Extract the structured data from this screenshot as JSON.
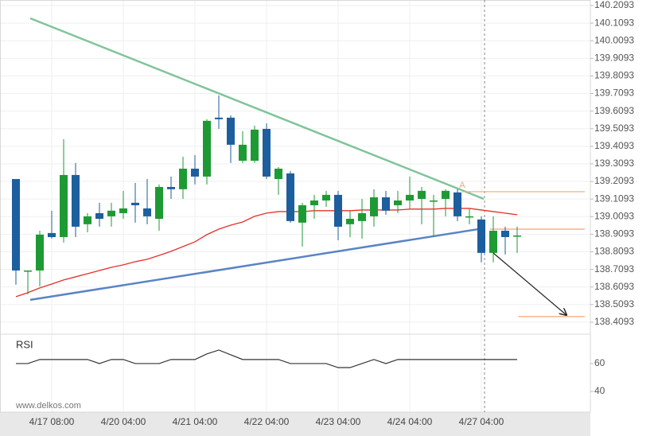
{
  "chart_data": [
    {
      "type": "candlestick",
      "categories": [
        null,
        null,
        null,
        "4/17 08:00",
        null,
        null,
        null,
        null,
        null,
        "4/20 04:00",
        null,
        null,
        null,
        null,
        null,
        "4/21 04:00",
        null,
        null,
        null,
        null,
        null,
        "4/22 04:00",
        null,
        null,
        null,
        null,
        null,
        "4/23 04:00",
        null,
        null,
        null,
        null,
        null,
        "4/24 04:00",
        null,
        null,
        null,
        null,
        null,
        "4/27 04:00",
        null,
        null,
        null
      ],
      "open": [
        139.223,
        138.703,
        138.703,
        138.916,
        138.893,
        139.246,
        138.966,
        139.029,
        139.011,
        139.029,
        139.088,
        139.056,
        138.997,
        139.178,
        139.165,
        139.282,
        139.237,
        139.572,
        139.572,
        139.327,
        139.327,
        139.508,
        139.223,
        139.255,
        138.975,
        139.074,
        139.101,
        139.133,
        138.966,
        138.984,
        139.011,
        139.119,
        139.074,
        139.101,
        139.11,
        139.101,
        139.11,
        139.147,
        139.011,
        138.993,
        138.803,
        138.929,
        138.902
      ],
      "high": [
        139.223,
        138.703,
        138.929,
        139.043,
        139.45,
        139.314,
        139.029,
        139.088,
        139.088,
        139.156,
        139.201,
        139.223,
        139.192,
        139.237,
        139.35,
        139.359,
        139.563,
        139.698,
        139.585,
        139.495,
        139.526,
        139.54,
        139.291,
        139.269,
        139.088,
        139.133,
        139.156,
        139.156,
        139.043,
        139.11,
        139.165,
        139.156,
        139.156,
        139.237,
        139.178,
        139.133,
        139.165,
        139.165,
        139.056,
        139.011,
        139.011,
        138.952,
        138.952
      ],
      "low": [
        138.622,
        138.568,
        138.613,
        138.884,
        138.862,
        138.893,
        138.92,
        138.952,
        138.952,
        138.997,
        138.975,
        138.966,
        138.929,
        139.11,
        139.11,
        139.192,
        139.192,
        139.508,
        139.314,
        139.314,
        139.314,
        139.223,
        139.133,
        138.975,
        138.839,
        138.997,
        139.065,
        138.875,
        138.893,
        138.884,
        138.952,
        139.02,
        139.029,
        139.056,
        138.966,
        138.893,
        139.011,
        138.984,
        138.966,
        138.749,
        138.749,
        138.794,
        138.803
      ],
      "close": [
        138.703,
        138.703,
        138.907,
        138.893,
        139.246,
        138.952,
        139.011,
        138.997,
        139.043,
        139.056,
        139.074,
        139.011,
        139.178,
        139.165,
        139.282,
        139.237,
        139.554,
        139.563,
        139.418,
        139.418,
        139.504,
        139.237,
        139.282,
        138.984,
        139.074,
        139.101,
        139.133,
        138.952,
        138.997,
        139.029,
        139.119,
        139.043,
        139.101,
        139.133,
        139.156,
        139.101,
        139.156,
        139.011,
        139.011,
        138.803,
        138.929,
        138.893,
        138.902
      ],
      "up_color": "#1e9a34",
      "down_color": "#1d5e9e",
      "lines": [
        {
          "color": "#e8302a",
          "values": [
            138.554,
            138.577,
            138.604,
            138.626,
            138.649,
            138.667,
            138.685,
            138.703,
            138.721,
            138.735,
            138.753,
            138.767,
            138.789,
            138.812,
            138.839,
            138.866,
            138.907,
            138.938,
            138.961,
            138.979,
            139.011,
            139.029,
            139.038,
            139.038,
            139.038,
            139.043,
            139.043,
            139.043,
            139.043,
            139.047,
            139.047,
            139.047,
            139.047,
            139.052,
            139.052,
            139.052,
            139.056,
            139.056,
            139.056,
            139.047,
            139.038,
            139.029,
            139.02
          ]
        }
      ],
      "trendlines": [
        {
          "color": "#7fc49a",
          "x": [
            1.2,
            39.2
          ],
          "y": [
            140.137,
            139.11
          ]
        },
        {
          "color": "#5a84c4",
          "x": [
            1.2,
            39.2
          ],
          "y": [
            138.536,
            138.943
          ]
        }
      ],
      "levels": [
        {
          "value": 139.151,
          "from": 37.4
        },
        {
          "value": 138.938,
          "from": 39.7
        },
        {
          "value": 138.441,
          "from": 42.1
        }
      ],
      "level_color": "#f4a57a",
      "annotation": "A",
      "ylim": [
        138.341,
        140.241
      ],
      "yticks": [
        140.2093,
        140.1093,
        140.0093,
        139.9093,
        139.8093,
        139.7093,
        139.6093,
        139.5093,
        139.4093,
        139.3093,
        139.2093,
        139.1093,
        139.0093,
        138.9093,
        138.8093,
        138.7093,
        138.6093,
        138.5093,
        138.4093
      ],
      "grid": true,
      "watermark": "www.delkos.com"
    },
    {
      "type": "line",
      "title": "RSI",
      "color": "#333333",
      "values": [
        60,
        60,
        62.9,
        62.9,
        62.9,
        62.9,
        62.9,
        60,
        62.9,
        62.9,
        60,
        60,
        60,
        62.9,
        62.9,
        62.9,
        66.9,
        69.7,
        66.3,
        62.9,
        62.9,
        62.9,
        62.9,
        60,
        60,
        60,
        60,
        57.1,
        57.1,
        60,
        62.9,
        60,
        62.9,
        62.9,
        62.9,
        62.9,
        62.9,
        62.9,
        62.9,
        62.9,
        62.9,
        62.9,
        62.9
      ],
      "ylim": [
        25.7,
        81.1
      ],
      "yticks": [
        40,
        60
      ]
    }
  ]
}
